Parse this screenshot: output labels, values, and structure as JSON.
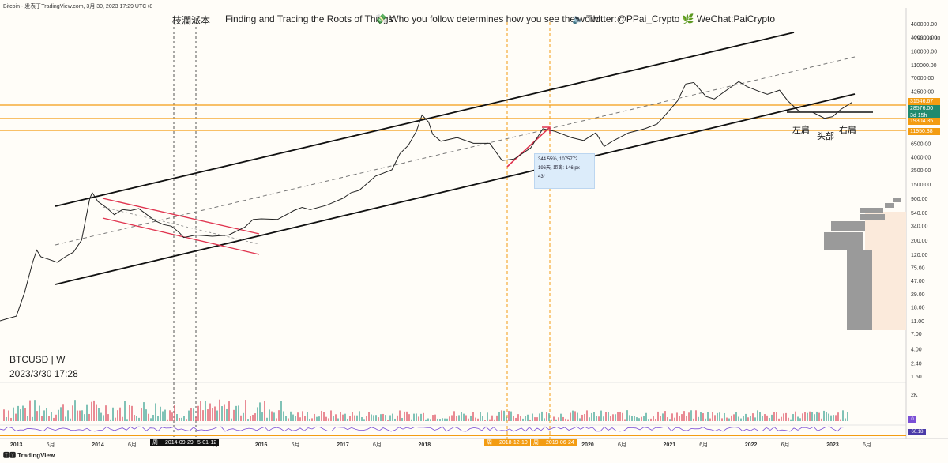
{
  "header": {
    "source_line": "Bitcoin - 发表于TradingView.com,  3月 30, 2023 17:29 UTC+8"
  },
  "banner": {
    "brand": "枝瀾派本",
    "tagline1": "Finding and Tracing the Roots of Things",
    "tagline2": "💸 Who you follow determines how you see the world",
    "social": "🔈 Twitter:@PPai_Crypto 🌿 WeChat:PaiCrypto"
  },
  "symbol": "BTCUSD | W",
  "datetime": "2023/3/30 17:28",
  "footer_logo": "🆃🆅 TradingView",
  "measure_tool": {
    "line1": "344.55%, 1075772",
    "line2": "196天, 距离: 146 px",
    "line3": "43°"
  },
  "annotations": {
    "left_shoulder": "左肩",
    "head": "头部",
    "right_shoulder": "右肩"
  },
  "time_markers": {
    "m1": "周一 2014-09-29",
    "m2": "5-01-12",
    "m3": "周一 2018-12-10",
    "m4": "周一 2019-06-24"
  },
  "volume_scale": "2K",
  "indicator_value": "0",
  "rsi_value": "66.18",
  "price_boxes": [
    {
      "value": "31546.67",
      "color": "#f39c12"
    },
    {
      "value": "28576.00",
      "color": "#1f8a6e"
    },
    {
      "value": "3d 15h",
      "color": "#1f8a6e"
    },
    {
      "value": "19304.35",
      "color": "#f39c12"
    },
    {
      "value": "11950.38",
      "color": "#f39c12"
    }
  ],
  "chart_data": {
    "type": "line",
    "title": "BTCUSD | W",
    "yscale": "log",
    "ylim": [
      1.2,
      480000
    ],
    "xlim": [
      2012.8,
      2023.9
    ],
    "y_ticks": [
      "480000.00",
      "~293000.00",
      "300000.00",
      "180000.00",
      "110000.00",
      "70000.00",
      "42500.00",
      "19304.35",
      "6500.00",
      "4000.00",
      "2500.00",
      "1500.00",
      "900.00",
      "540.00",
      "340.00",
      "200.00",
      "120.00",
      "75.00",
      "47.00",
      "29.00",
      "18.00",
      "11.00",
      "7.00",
      "4.00",
      "2.40",
      "1.50"
    ],
    "y_tick_values": [
      480000,
      293000,
      300000,
      180000,
      110000,
      70000,
      42500,
      19304,
      6500,
      4000,
      2500,
      1500,
      900,
      540,
      340,
      200,
      120,
      75,
      47,
      29,
      18,
      11,
      7,
      4,
      2.4,
      1.5
    ],
    "x_ticks": [
      {
        "label": "2013",
        "x": 2013.0,
        "bold": true
      },
      {
        "label": "6月",
        "x": 2013.42,
        "bold": false
      },
      {
        "label": "2014",
        "x": 2014.0,
        "bold": true
      },
      {
        "label": "6月",
        "x": 2014.42,
        "bold": false
      },
      {
        "label": "6月",
        "x": 2015.42,
        "bold": false
      },
      {
        "label": "2016",
        "x": 2016.0,
        "bold": true
      },
      {
        "label": "6月",
        "x": 2016.42,
        "bold": false
      },
      {
        "label": "2017",
        "x": 2017.0,
        "bold": true
      },
      {
        "label": "6月",
        "x": 2017.42,
        "bold": false
      },
      {
        "label": "2018",
        "x": 2018.0,
        "bold": true
      },
      {
        "label": "2020",
        "x": 2020.0,
        "bold": true
      },
      {
        "label": "6月",
        "x": 2020.42,
        "bold": false
      },
      {
        "label": "2021",
        "x": 2021.0,
        "bold": true
      },
      {
        "label": "6月",
        "x": 2021.42,
        "bold": false
      },
      {
        "label": "2022",
        "x": 2022.0,
        "bold": true
      },
      {
        "label": "6月",
        "x": 2022.42,
        "bold": false
      },
      {
        "label": "2023",
        "x": 2023.0,
        "bold": true
      },
      {
        "label": "6月",
        "x": 2023.42,
        "bold": false
      }
    ],
    "series": [
      {
        "name": "BTCUSD weekly close",
        "x": [
          2012.8,
          2012.9,
          2013.0,
          2013.1,
          2013.2,
          2013.25,
          2013.3,
          2013.4,
          2013.5,
          2013.6,
          2013.7,
          2013.8,
          2013.9,
          2013.93,
          2014.0,
          2014.1,
          2014.2,
          2014.3,
          2014.4,
          2014.5,
          2014.6,
          2014.7,
          2014.8,
          2014.9,
          2015.0,
          2015.05,
          2015.2,
          2015.4,
          2015.6,
          2015.8,
          2015.9,
          2016.0,
          2016.2,
          2016.4,
          2016.5,
          2016.6,
          2016.8,
          2017.0,
          2017.1,
          2017.2,
          2017.4,
          2017.6,
          2017.7,
          2017.8,
          2017.9,
          2017.97,
          2018.05,
          2018.1,
          2018.2,
          2018.4,
          2018.6,
          2018.8,
          2018.95,
          2019.1,
          2019.3,
          2019.45,
          2019.6,
          2019.8,
          2019.95,
          2020.1,
          2020.2,
          2020.3,
          2020.5,
          2020.7,
          2020.85,
          2020.95,
          2021.1,
          2021.2,
          2021.3,
          2021.45,
          2021.55,
          2021.7,
          2021.85,
          2021.95,
          2022.1,
          2022.2,
          2022.35,
          2022.45,
          2022.6,
          2022.75,
          2022.9,
          2023.0,
          2023.1,
          2023.24
        ],
        "y": [
          11,
          12,
          13,
          30,
          90,
          140,
          110,
          100,
          90,
          110,
          130,
          200,
          900,
          1100,
          800,
          650,
          500,
          600,
          580,
          620,
          500,
          400,
          350,
          330,
          260,
          220,
          240,
          230,
          240,
          320,
          420,
          430,
          420,
          580,
          650,
          600,
          700,
          900,
          1100,
          1200,
          2000,
          2500,
          4500,
          6000,
          10000,
          18000,
          14000,
          9000,
          7000,
          8000,
          6500,
          6500,
          3500,
          3700,
          5500,
          11000,
          10000,
          8000,
          7200,
          9500,
          5800,
          7000,
          9500,
          11000,
          13000,
          18000,
          30000,
          55000,
          58000,
          35000,
          32000,
          44000,
          60000,
          50000,
          42000,
          38000,
          44000,
          30000,
          20000,
          20000,
          16000,
          17000,
          22000,
          28576
        ]
      }
    ]
  }
}
